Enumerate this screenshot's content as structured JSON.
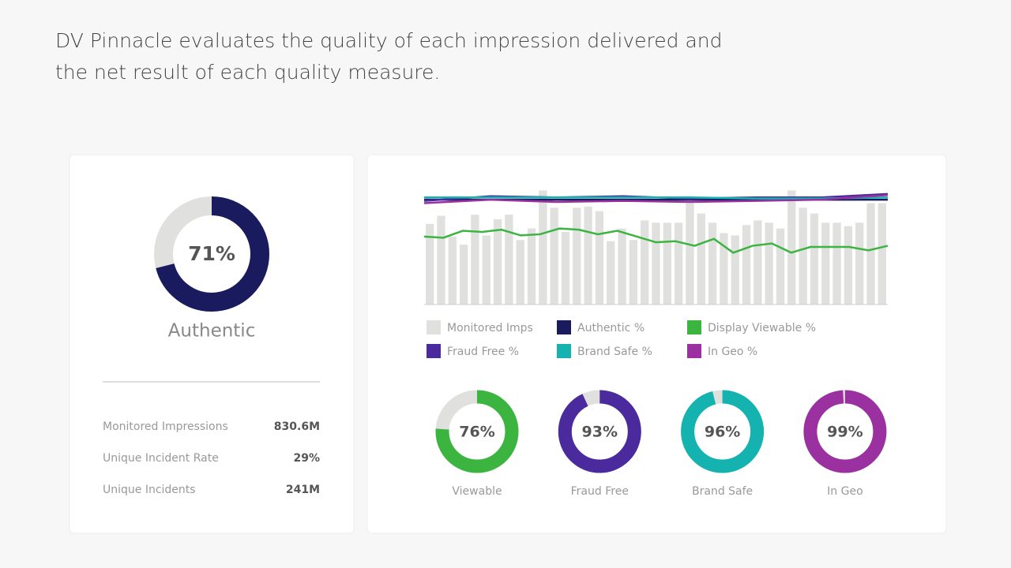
{
  "header": {
    "title": [
      "DV Pinnacle evaluates the quality of each impression delivered and",
      "the net result of each quality measure."
    ]
  },
  "summary": {
    "donut": {
      "value": 71,
      "value_label": "71%",
      "label": "Authentic",
      "color": "#1a1a5e",
      "rest_color": "#e0e0de"
    },
    "stats": [
      {
        "label": "Monitored Impressions",
        "value": "830.6M"
      },
      {
        "label": "Unique Incident Rate",
        "value": "29%"
      },
      {
        "label": "Unique Incidents",
        "value": "241M"
      }
    ]
  },
  "chart_data": {
    "type": "bar",
    "ylim": [
      0,
      100
    ],
    "series": [
      {
        "name": "Monitored Imps",
        "type": "bar",
        "color": "#e0e0de",
        "values": [
          70,
          77,
          59,
          52,
          78,
          60,
          74,
          78,
          56,
          66,
          99,
          84,
          63,
          84,
          85,
          81,
          55,
          66,
          56,
          73,
          71,
          71,
          71,
          88,
          79,
          71,
          62,
          60,
          69,
          73,
          71,
          66,
          99,
          84,
          79,
          71,
          71,
          68,
          71,
          88,
          88
        ]
      },
      {
        "name": "Authentic %",
        "type": "line",
        "color": "#1a1a5e",
        "values": [
          91,
          91,
          91,
          91,
          91,
          91,
          91,
          91
        ]
      },
      {
        "name": "Display Viewable %",
        "type": "line",
        "color": "#3cb540",
        "values": [
          59,
          58,
          64,
          63,
          65,
          60,
          61,
          66,
          65,
          61,
          64,
          59,
          54,
          55,
          51,
          57,
          45,
          51,
          53,
          45,
          50,
          50,
          50,
          47,
          51
        ]
      },
      {
        "name": "Fraud Free %",
        "type": "line",
        "color": "#4b2a9e",
        "values": [
          90,
          94,
          93,
          94,
          92,
          93,
          93,
          96
        ]
      },
      {
        "name": "Brand Safe %",
        "type": "line",
        "color": "#14b3b0",
        "values": [
          93,
          93,
          93,
          93,
          93,
          92,
          92,
          93
        ]
      },
      {
        "name": "In Geo %",
        "type": "line",
        "color": "#9b30a0",
        "values": [
          88,
          91,
          89,
          90,
          89,
          90,
          91,
          95
        ]
      }
    ]
  },
  "donuts": [
    {
      "label": "Viewable",
      "value": 76,
      "value_label": "76%",
      "color": "#3cb540"
    },
    {
      "label": "Fraud Free",
      "value": 93,
      "value_label": "93%",
      "color": "#4b2a9e"
    },
    {
      "label": "Brand Safe",
      "value": 96,
      "value_label": "96%",
      "color": "#14b3b0"
    },
    {
      "label": "In Geo",
      "value": 99,
      "value_label": "99%",
      "color": "#9b30a0"
    }
  ]
}
